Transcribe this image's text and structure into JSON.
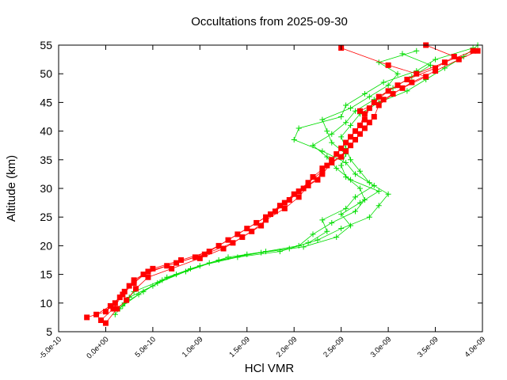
{
  "chart_data": {
    "type": "line",
    "title": "Occultations from 2025-09-30",
    "xlabel": "HCl VMR",
    "ylabel": "Altitude (km)",
    "xlim": [
      -5e-10,
      4e-09
    ],
    "ylim": [
      5,
      55
    ],
    "grid": false,
    "legend": "none",
    "x_ticks": [
      -5e-10,
      0,
      5e-10,
      1e-09,
      1.5e-09,
      2e-09,
      2.5e-09,
      3e-09,
      3.5e-09,
      4e-09
    ],
    "x_tick_labels": [
      "-5.0e-10",
      "0.0e+00",
      "5.0e-10",
      "1.0e-09",
      "1.5e-09",
      "2.0e-09",
      "2.5e-09",
      "3.0e-09",
      "3.5e-09",
      "4.0e-09"
    ],
    "y_ticks": [
      5,
      10,
      15,
      20,
      25,
      30,
      35,
      40,
      45,
      50,
      55
    ],
    "y_tick_labels": [
      "5",
      "10",
      "15",
      "20",
      "25",
      "30",
      "35",
      "40",
      "45",
      "50",
      "55"
    ],
    "series": [
      {
        "color": "#00dd00",
        "marker": "plus",
        "profiles": [
          [
            [
              1e-10,
              8
            ],
            [
              2e-10,
              10
            ],
            [
              3e-10,
              12
            ],
            [
              6e-10,
              14
            ],
            [
              9e-10,
              16
            ],
            [
              1.3e-09,
              18
            ],
            [
              1.7e-09,
              19
            ],
            [
              2.05e-09,
              20
            ],
            [
              2.2e-09,
              22
            ],
            [
              2.4e-09,
              24
            ],
            [
              2.65e-09,
              26
            ],
            [
              2.75e-09,
              28
            ],
            [
              2.7e-09,
              30
            ],
            [
              2.55e-09,
              32
            ],
            [
              2.5e-09,
              34
            ],
            [
              2.55e-09,
              36
            ],
            [
              2.4e-09,
              38
            ],
            [
              2.35e-09,
              40
            ],
            [
              2.3e-09,
              42
            ],
            [
              2.6e-09,
              44
            ],
            [
              2.8e-09,
              46
            ],
            [
              3e-09,
              48
            ],
            [
              3.1e-09,
              50
            ],
            [
              2.9e-09,
              52
            ],
            [
              3.3e-09,
              54
            ]
          ],
          [
            [
              1.5e-10,
              9
            ],
            [
              2.5e-10,
              11
            ],
            [
              5e-10,
              13
            ],
            [
              7.5e-10,
              15
            ],
            [
              1.1e-09,
              17
            ],
            [
              1.5e-09,
              18.5
            ],
            [
              1.95e-09,
              19.5
            ],
            [
              2.25e-09,
              21
            ],
            [
              2.5e-09,
              23
            ],
            [
              2.8e-09,
              25
            ],
            [
              2.9e-09,
              27
            ],
            [
              3e-09,
              29
            ],
            [
              2.8e-09,
              31
            ],
            [
              2.7e-09,
              33
            ],
            [
              2.6e-09,
              35
            ],
            [
              2.55e-09,
              37
            ],
            [
              2.5e-09,
              39
            ],
            [
              2.6e-09,
              41
            ],
            [
              2.7e-09,
              43
            ],
            [
              2.9e-09,
              45
            ],
            [
              3.2e-09,
              47
            ],
            [
              3.4e-09,
              49
            ],
            [
              3.6e-09,
              51
            ],
            [
              3.8e-09,
              53
            ],
            [
              3.95e-09,
              55
            ]
          ],
          [
            [
              2e-10,
              10
            ],
            [
              4e-10,
              12
            ],
            [
              6.5e-10,
              14.5
            ],
            [
              1e-09,
              16.5
            ],
            [
              1.4e-09,
              18
            ],
            [
              1.85e-09,
              19
            ],
            [
              2.15e-09,
              20.5
            ],
            [
              2.35e-09,
              22.5
            ],
            [
              2.3e-09,
              24.5
            ],
            [
              2.55e-09,
              26.5
            ],
            [
              2.65e-09,
              28.5
            ],
            [
              2.85e-09,
              30.5
            ],
            [
              2.65e-09,
              32.5
            ],
            [
              2.55e-09,
              34.5
            ],
            [
              2.3e-09,
              36.5
            ],
            [
              2e-09,
              38.5
            ],
            [
              2.05e-09,
              40.5
            ],
            [
              2.5e-09,
              42.5
            ],
            [
              2.55e-09,
              44.5
            ],
            [
              2.75e-09,
              46.5
            ],
            [
              2.95e-09,
              48.5
            ],
            [
              3.3e-09,
              50.5
            ],
            [
              3.5e-09,
              52.5
            ],
            [
              3.9e-09,
              54.5
            ]
          ],
          [
            [
              1.8e-10,
              9.5
            ],
            [
              3.5e-10,
              11.5
            ],
            [
              5.5e-10,
              13.5
            ],
            [
              8.5e-10,
              15.5
            ],
            [
              1.2e-09,
              17.5
            ],
            [
              1.65e-09,
              18.8
            ],
            [
              2.1e-09,
              19.8
            ],
            [
              2.45e-09,
              21.5
            ],
            [
              2.6e-09,
              23.5
            ],
            [
              2.5e-09,
              25.5
            ],
            [
              2.7e-09,
              27.5
            ],
            [
              2.9e-09,
              29.5
            ],
            [
              2.6e-09,
              31.5
            ],
            [
              2.45e-09,
              33.5
            ],
            [
              2.35e-09,
              35.5
            ],
            [
              2.2e-09,
              37.5
            ],
            [
              2.4e-09,
              39.5
            ],
            [
              2.55e-09,
              41.5
            ],
            [
              2.65e-09,
              43.5
            ],
            [
              2.85e-09,
              45.5
            ],
            [
              3.05e-09,
              47.5
            ],
            [
              3.25e-09,
              49.5
            ],
            [
              3.45e-09,
              51.5
            ],
            [
              3.15e-09,
              53.5
            ]
          ]
        ]
      },
      {
        "color": "#ff0000",
        "marker": "square",
        "profiles": [
          [
            [
              -2e-10,
              7.5
            ],
            [
              0.0,
              8.5
            ],
            [
              1e-10,
              10
            ],
            [
              2e-10,
              12
            ],
            [
              3e-10,
              14
            ],
            [
              5e-10,
              16
            ],
            [
              8e-10,
              17.5
            ],
            [
              1.1e-09,
              19
            ],
            [
              1.3e-09,
              21
            ],
            [
              1.5e-09,
              23
            ],
            [
              1.7e-09,
              25
            ],
            [
              1.85e-09,
              27
            ],
            [
              2e-09,
              29
            ],
            [
              2.15e-09,
              31
            ],
            [
              2.3e-09,
              33
            ],
            [
              2.4e-09,
              35
            ],
            [
              2.5e-09,
              37
            ],
            [
              2.6e-09,
              39
            ],
            [
              2.7e-09,
              41
            ],
            [
              2.75e-09,
              43
            ],
            [
              2.85e-09,
              45
            ],
            [
              3e-09,
              47
            ],
            [
              3.2e-09,
              49
            ],
            [
              3.5e-09,
              51
            ],
            [
              3.7e-09,
              53
            ],
            [
              3.4e-09,
              55
            ]
          ],
          [
            [
              -1e-10,
              8
            ],
            [
              5e-11,
              9.5
            ],
            [
              1.5e-10,
              11
            ],
            [
              2.5e-10,
              13
            ],
            [
              4e-10,
              15
            ],
            [
              6.5e-10,
              16.5
            ],
            [
              9.5e-10,
              18
            ],
            [
              1.2e-09,
              20
            ],
            [
              1.4e-09,
              22
            ],
            [
              1.6e-09,
              24
            ],
            [
              1.8e-09,
              26
            ],
            [
              1.95e-09,
              28
            ],
            [
              2.1e-09,
              30
            ],
            [
              2.2e-09,
              32
            ],
            [
              2.35e-09,
              34
            ],
            [
              2.45e-09,
              36
            ],
            [
              2.55e-09,
              38
            ],
            [
              2.65e-09,
              40
            ],
            [
              2.75e-09,
              42
            ],
            [
              2.8e-09,
              44
            ],
            [
              2.9e-09,
              46
            ],
            [
              3.1e-09,
              48
            ],
            [
              3.3e-09,
              50
            ],
            [
              3.6e-09,
              52
            ],
            [
              3.9e-09,
              54
            ]
          ],
          [
            [
              0.0,
              6.5
            ],
            [
              1.2e-10,
              9
            ],
            [
              2.2e-10,
              10.5
            ],
            [
              3.2e-10,
              12.5
            ],
            [
              4.5e-10,
              14.5
            ],
            [
              7e-10,
              16
            ],
            [
              1e-09,
              17.8
            ],
            [
              1.25e-09,
              19.5
            ],
            [
              1.45e-09,
              21.5
            ],
            [
              1.65e-09,
              23.5
            ],
            [
              1.75e-09,
              25.5
            ],
            [
              1.9e-09,
              27.5
            ],
            [
              2.05e-09,
              29.5
            ],
            [
              2.25e-09,
              31.5
            ],
            [
              2.3e-09,
              33.5
            ],
            [
              2.5e-09,
              35.5
            ],
            [
              2.6e-09,
              37.5
            ],
            [
              2.7e-09,
              39.5
            ],
            [
              2.8e-09,
              41.5
            ],
            [
              2.7e-09,
              43.5
            ],
            [
              2.95e-09,
              45.5
            ],
            [
              3.15e-09,
              47.5
            ],
            [
              3.4e-09,
              49.5
            ],
            [
              3e-09,
              51.5
            ],
            [
              2.5e-09,
              54.5
            ]
          ],
          [
            [
              -5e-11,
              7
            ],
            [
              8e-11,
              9
            ],
            [
              1.8e-10,
              11.5
            ],
            [
              3e-10,
              13.5
            ],
            [
              4.5e-10,
              15.5
            ],
            [
              7.5e-10,
              17
            ],
            [
              1.05e-09,
              18.5
            ],
            [
              1.35e-09,
              20.5
            ],
            [
              1.55e-09,
              22.5
            ],
            [
              1.7e-09,
              24.5
            ],
            [
              1.9e-09,
              26.5
            ],
            [
              2.05e-09,
              28.5
            ],
            [
              2.15e-09,
              30.5
            ],
            [
              2.3e-09,
              32.5
            ],
            [
              2.4e-09,
              34.5
            ],
            [
              2.55e-09,
              36.5
            ],
            [
              2.65e-09,
              38.5
            ],
            [
              2.75e-09,
              40.5
            ],
            [
              2.85e-09,
              42.5
            ],
            [
              2.9e-09,
              44.5
            ],
            [
              3.05e-09,
              46.5
            ],
            [
              3.25e-09,
              48.5
            ],
            [
              3.5e-09,
              50.5
            ],
            [
              3.75e-09,
              52.5
            ],
            [
              3.95e-09,
              54
            ]
          ]
        ]
      }
    ]
  }
}
